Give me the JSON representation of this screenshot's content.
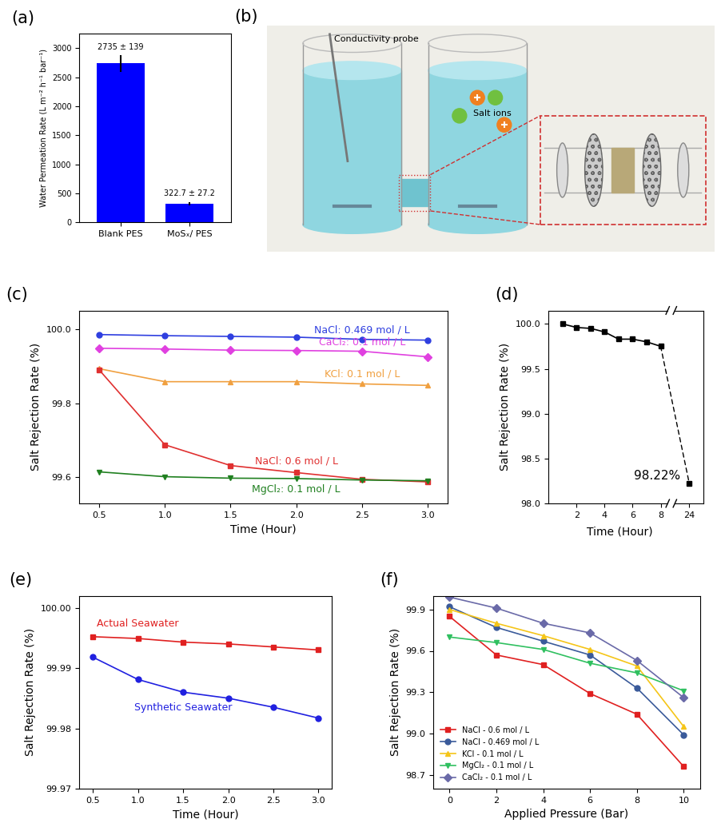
{
  "chart_data": [
    {
      "type": "bar",
      "title": "(a)",
      "categories": [
        "Blank PES",
        "MoSₓ/ PES"
      ],
      "values": [
        2735,
        322.7
      ],
      "errors": [
        139,
        27.2
      ],
      "value_labels": [
        "2735 ± 139",
        "322.7 ± 27.2"
      ],
      "data_labels": true,
      "color": "#0000ff",
      "y_label": "Water Permeation Rate (L m⁻² h⁻¹ bar⁻¹)",
      "ylim": [
        0,
        3250
      ],
      "yticks": [
        0,
        500,
        1000,
        1500,
        2000,
        2500,
        3000
      ]
    },
    {
      "type": "line",
      "title": "(c)",
      "x": [
        0.5,
        1,
        1.5,
        2,
        2.5,
        3
      ],
      "x_label": "Time (Hour)",
      "y_label": "Salt Rejection Rate (%)",
      "xlim": [
        0.35,
        3.15
      ],
      "xticks": [
        0.5,
        {
          "value": 1,
          "label": "1.0"
        },
        1.5,
        {
          "value": 2,
          "label": "2.0"
        },
        2.5,
        {
          "value": 3,
          "label": "3.0"
        }
      ],
      "ylim": [
        99.53,
        100.05
      ],
      "yticks": [
        99.6,
        99.8,
        {
          "value": 100,
          "label": "100.0"
        }
      ],
      "series": [
        {
          "name": "NaCl: 0.469 mol / L",
          "color": "#2f3fe0",
          "marker": "circle",
          "values": [
            99.985,
            99.982,
            99.98,
            99.978,
            99.972,
            99.97
          ]
        },
        {
          "name": "CaCl₂: 0.1 mol / L",
          "color": "#e040e0",
          "marker": "diamond",
          "values": [
            99.948,
            99.946,
            99.943,
            99.942,
            99.94,
            99.925
          ]
        },
        {
          "name": "KCl: 0.1 mol / L",
          "color": "#f0a040",
          "marker": "triangle_up",
          "values": [
            99.893,
            99.858,
            99.858,
            99.858,
            99.852,
            99.848
          ]
        },
        {
          "name": "NaCl: 0.6 mol / L",
          "color": "#e03030",
          "marker": "square",
          "values": [
            99.89,
            99.688,
            99.632,
            99.613,
            99.595,
            99.588
          ]
        },
        {
          "name": "MgCl₂: 0.1 mol / L",
          "color": "#208020",
          "marker": "triangle_down",
          "values": [
            99.615,
            99.602,
            99.598,
            99.597,
            99.593,
            99.591
          ]
        }
      ]
    },
    {
      "type": "line",
      "title": "(d)",
      "x": [
        1,
        2,
        3,
        4,
        5,
        6,
        7,
        8,
        24
      ],
      "x_label": "Time (Hour)",
      "y_label": "Salt Rejection Rate (%)",
      "xlim": [
        0,
        25
      ],
      "xbreak": [
        8.5,
        23
      ],
      "xticks": [
        2,
        4,
        6,
        8,
        24
      ],
      "ylim": [
        98,
        100.15
      ],
      "yticks": [
        {
          "value": 98,
          "label": "98.0"
        },
        98.5,
        {
          "value": 99,
          "label": "99.0"
        },
        99.5,
        {
          "value": 100,
          "label": "100.0"
        }
      ],
      "data_labels": true,
      "series": [
        {
          "color": "#000000",
          "marker": "square",
          "values": [
            100.0,
            99.96,
            99.95,
            99.91,
            99.83,
            99.83,
            99.8,
            99.75,
            98.22
          ],
          "value_labels": [
            null,
            null,
            null,
            null,
            null,
            null,
            null,
            null,
            "98.22%"
          ]
        }
      ]
    },
    {
      "type": "line",
      "title": "(e)",
      "x": [
        0.5,
        1,
        1.5,
        2,
        2.5,
        3
      ],
      "x_label": "Time (Hour)",
      "y_label": "Salt Rejection Rate (%)",
      "xlim": [
        0.35,
        3.15
      ],
      "xticks": [
        0.5,
        {
          "value": 1,
          "label": "1.0"
        },
        1.5,
        {
          "value": 2,
          "label": "2.0"
        },
        2.5,
        {
          "value": 3,
          "label": "3.0"
        }
      ],
      "ylim": [
        99.97,
        100.002
      ],
      "yticks": [
        99.97,
        99.98,
        99.99,
        {
          "value": 100,
          "label": "100.00"
        }
      ],
      "series": [
        {
          "name": "Actual Seawater",
          "color": "#e02020",
          "marker": "square",
          "values": [
            99.9952,
            99.9949,
            99.9943,
            99.994,
            99.9935,
            99.993
          ]
        },
        {
          "name": "Synthetic Seawater",
          "color": "#2020e0",
          "marker": "circle",
          "values": [
            99.9918,
            99.9881,
            99.986,
            99.985,
            99.9835,
            99.9817
          ]
        }
      ]
    },
    {
      "type": "line",
      "title": "(f)",
      "x": [
        0,
        2,
        4,
        6,
        8,
        10
      ],
      "x_label": "Applied Pressure (Bar)",
      "y_label": "Salt Rejection Rate (%)",
      "xlim": [
        -0.7,
        10.7
      ],
      "xticks": [
        0,
        2,
        4,
        6,
        8,
        10
      ],
      "ylim": [
        98.6,
        100.0
      ],
      "yticks": [
        98.7,
        {
          "value": 99,
          "label": "99.0"
        },
        99.3,
        99.6,
        99.9
      ],
      "legend": "lower left",
      "series": [
        {
          "name": "NaCl - 0.6 mol / L",
          "color": "#e02020",
          "marker": "square",
          "values": [
            99.85,
            99.57,
            99.5,
            99.29,
            99.14,
            98.76
          ]
        },
        {
          "name": "NaCl - 0.469 mol / L",
          "color": "#3a5a9a",
          "marker": "circle",
          "values": [
            99.92,
            99.77,
            99.67,
            99.57,
            99.33,
            98.99
          ]
        },
        {
          "name": "KCl - 0.1 mol / L",
          "color": "#f5c518",
          "marker": "triangle_up",
          "values": [
            99.9,
            99.8,
            99.71,
            99.61,
            99.49,
            99.05
          ]
        },
        {
          "name": "MgCl₂ - 0.1 mol / L",
          "color": "#30c060",
          "marker": "triangle_down",
          "values": [
            99.7,
            99.66,
            99.61,
            99.51,
            99.44,
            99.31
          ]
        },
        {
          "name": "CaCl₂ - 0.1 mol / L",
          "color": "#6a6aa8",
          "marker": "diamond",
          "values": [
            99.99,
            99.91,
            99.8,
            99.73,
            99.53,
            99.26
          ]
        }
      ]
    }
  ],
  "diagram": {
    "title": "(b)",
    "labels": [
      "Conductivity probe",
      "Salt ions"
    ]
  }
}
